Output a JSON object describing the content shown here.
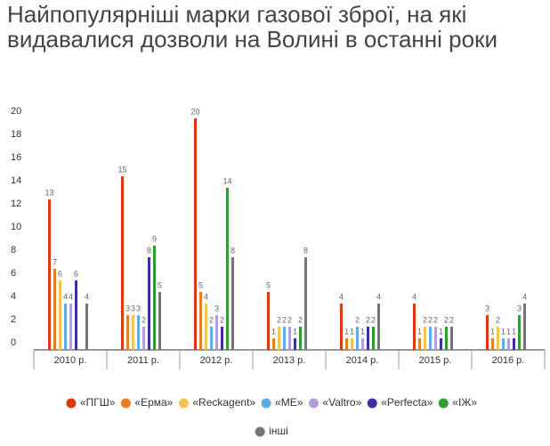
{
  "chart_data": {
    "type": "bar",
    "title": "Найпопулярніші марки газової зброї, на які видавалися дозволи на Волині в останні роки",
    "categories": [
      "2010 р.",
      "2011 р.",
      "2012 р.",
      "2013 р.",
      "2014 р.",
      "2015 р.",
      "2016 р."
    ],
    "series": [
      {
        "name": "«ПГШ»",
        "color": "#dc3912",
        "values": [
          13,
          15,
          20,
          5,
          4,
          4,
          3
        ]
      },
      {
        "name": "«Ерма»",
        "color": "#e67e22",
        "values": [
          7,
          3,
          5,
          1,
          1,
          1,
          1
        ]
      },
      {
        "name": "«Reckagent»",
        "color": "#f1c550",
        "values": [
          6,
          3,
          4,
          2,
          1,
          2,
          2
        ]
      },
      {
        "name": "«МЕ»",
        "color": "#5dade2",
        "values": [
          4,
          3,
          2,
          2,
          2,
          2,
          1
        ]
      },
      {
        "name": "«Valtro»",
        "color": "#b39ddb",
        "values": [
          4,
          2,
          3,
          2,
          1,
          2,
          1
        ]
      },
      {
        "name": "«Perfecta»",
        "color": "#3f2e9e",
        "values": [
          6,
          8,
          2,
          1,
          2,
          1,
          1
        ]
      },
      {
        "name": "«ІЖ»",
        "color": "#2e9e2e",
        "values": [
          null,
          9,
          14,
          2,
          2,
          2,
          3
        ]
      },
      {
        "name": "інші",
        "color": "#757575",
        "values": [
          4,
          5,
          8,
          8,
          4,
          2,
          4
        ]
      }
    ],
    "ylim": [
      0,
      20
    ],
    "yticks": [
      0,
      2,
      4,
      6,
      8,
      10,
      12,
      14,
      16,
      18,
      20
    ],
    "value_labels_shown": true
  }
}
